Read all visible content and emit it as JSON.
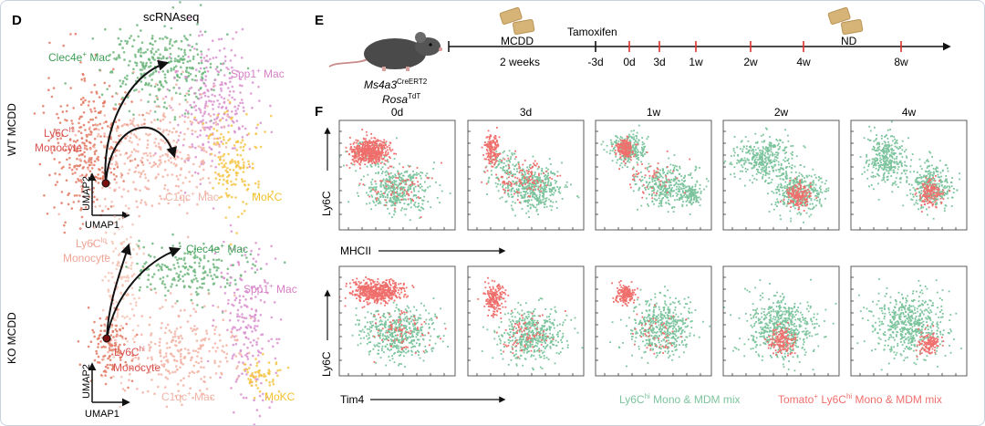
{
  "panel_d": {
    "letter": "D",
    "title": "scRNAseq",
    "wt_label": "WT MCDD",
    "ko_label": "KO MCDD",
    "axis_x": "UMAP1",
    "axis_y": "UMAP2",
    "wt": {
      "clec4e": {
        "base": "Clec4e",
        "sup": "+",
        "tail": " Mac"
      },
      "spp1": {
        "base": "Spp1",
        "sup": "+",
        "tail": " Mac"
      },
      "ly6chi_line1": {
        "base": "Ly6C",
        "sup": "hi"
      },
      "ly6chi_line2": "Monocyte",
      "c1qc": {
        "base": "C1qc",
        "sup": "+",
        "tail": " Mac"
      },
      "mokc": "MoKC"
    },
    "ko": {
      "ly6clo_line1": {
        "base": "Ly6C",
        "sup": "lo"
      },
      "ly6clo_line2": "Monocyte",
      "clec4e": {
        "base": "Clec4e",
        "sup": "+",
        "tail": " Mac"
      },
      "spp1": {
        "base": "Spp1",
        "sup": "+",
        "tail": " Mac"
      },
      "ly6chi_line1": {
        "base": "Ly6C",
        "sup": "hi"
      },
      "ly6chi_line2": "Monocyte",
      "c1qc": {
        "base": "C1qc",
        "sup": "+",
        "tail": " Mac"
      },
      "mokc": "MoKC"
    }
  },
  "panel_e": {
    "letter": "E",
    "diet1": "MCDD",
    "duration": "2 weeks",
    "tamoxifen": "Tamoxifen",
    "diet2": "ND",
    "timepoints": [
      "-3d",
      "0d",
      "3d",
      "1w",
      "2w",
      "4w",
      "8w"
    ],
    "mouse_line1": {
      "base": "Ms4a3",
      "sup": "CreERT2"
    },
    "mouse_line2": {
      "base": "Rosa",
      "sup": "TdT"
    }
  },
  "panel_f": {
    "letter": "F",
    "timepoints": [
      "0d",
      "3d",
      "1w",
      "2w",
      "4w"
    ],
    "row1_y": "Ly6C",
    "row1_x": "MHCII",
    "row2_y": "Ly6C",
    "row2_x": "Tim4",
    "legend_green": {
      "base": "Ly6C",
      "sup": "hi",
      "tail": " Mono & MDM mix"
    },
    "legend_red": {
      "pre": "Tomato",
      "sup1": "+",
      "mid": " Ly6C",
      "sup2": "hi",
      "tail": " Mono & MDM mix"
    }
  },
  "colors": {
    "green": "#7cc49d",
    "red": "#ef6f6c",
    "salmon": "#e8766a",
    "pink_label": "#d77fc7",
    "peach_label": "#efb4a6",
    "yellow_label": "#f2c230",
    "green_label": "#3f9f56",
    "red_label": "#d9534f",
    "timeline_tick": "#e0302a"
  }
}
